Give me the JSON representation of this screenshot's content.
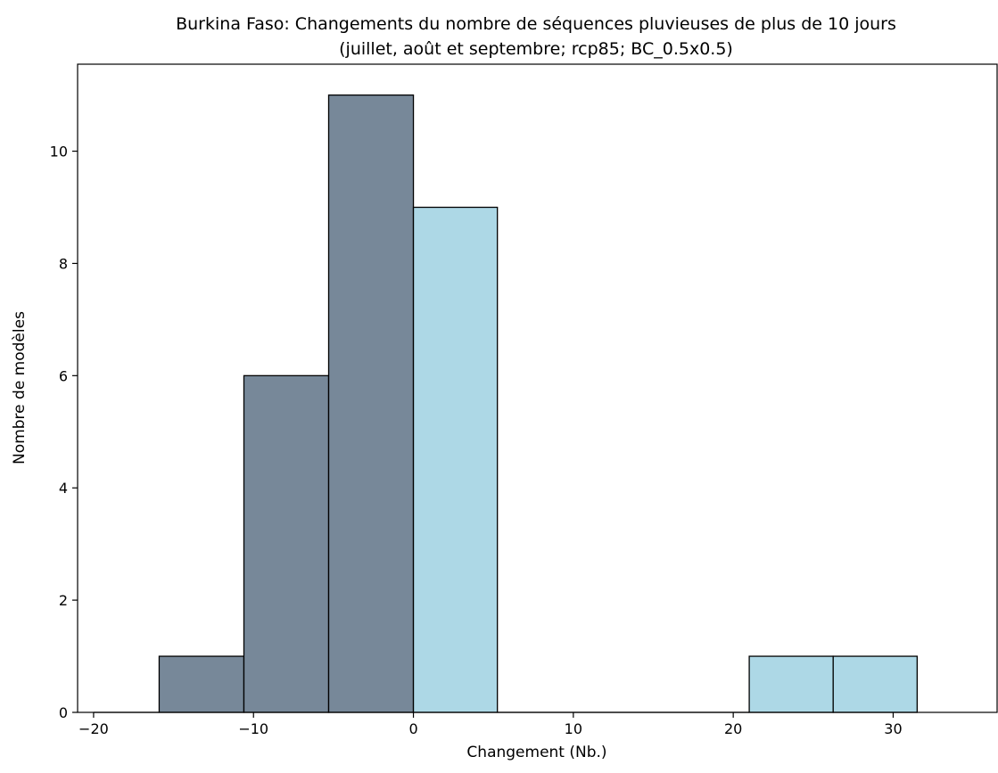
{
  "chart_data": {
    "type": "bar",
    "subtype": "histogram",
    "title": "Burkina Faso: Changements du nombre de séquences pluvieuses de plus de 10 jours",
    "subtitle": "(juillet, août et septembre; rcp85; BC_0.5x0.5)",
    "xlabel": "Changement (Nb.)",
    "ylabel": "Nombre de modèles",
    "xlim": [
      -21,
      36.5
    ],
    "ylim": [
      0,
      11.55
    ],
    "xticks": [
      -20,
      -10,
      0,
      10,
      20,
      30
    ],
    "xtick_labels": [
      "−20",
      "−10",
      "0",
      "10",
      "20",
      "30"
    ],
    "yticks": [
      0,
      2,
      4,
      6,
      8,
      10
    ],
    "ytick_labels": [
      "0",
      "2",
      "4",
      "6",
      "8",
      "10"
    ],
    "grid": false,
    "legend": "none",
    "colors": {
      "negative": "#778899",
      "positive": "#ADD8E6",
      "edge": "#000000"
    },
    "bins": [
      {
        "x0": -15.9,
        "x1": -10.6,
        "count": 1,
        "group": "negative"
      },
      {
        "x0": -10.6,
        "x1": -5.3,
        "count": 6,
        "group": "negative"
      },
      {
        "x0": -5.3,
        "x1": 0.0,
        "count": 11,
        "group": "negative"
      },
      {
        "x0": 0.0,
        "x1": 5.25,
        "count": 9,
        "group": "positive"
      },
      {
        "x0": 5.25,
        "x1": 10.5,
        "count": 0,
        "group": "positive"
      },
      {
        "x0": 10.5,
        "x1": 15.75,
        "count": 0,
        "group": "positive"
      },
      {
        "x0": 15.75,
        "x1": 21.0,
        "count": 0,
        "group": "positive"
      },
      {
        "x0": 21.0,
        "x1": 26.25,
        "count": 1,
        "group": "positive"
      },
      {
        "x0": 26.25,
        "x1": 31.5,
        "count": 1,
        "group": "positive"
      }
    ],
    "baseline_segments": [
      {
        "x0": -20.0,
        "x1": -15.9
      },
      {
        "x0": 5.25,
        "x1": 21.0
      }
    ]
  }
}
